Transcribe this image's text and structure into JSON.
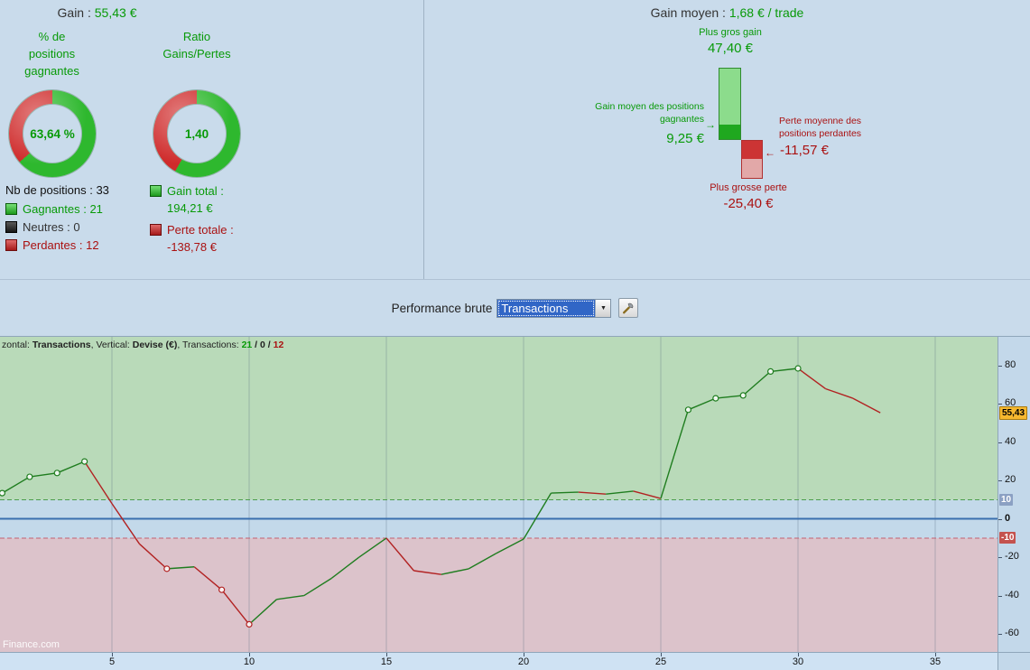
{
  "header": {
    "gain_label": "Gain :",
    "gain_value": "55,43 €",
    "avg_label": "Gain moyen :",
    "avg_value": "1,68 € / trade"
  },
  "donuts": {
    "winrate": {
      "label": "% de\npositions\ngagnantes",
      "value": "63,64 %",
      "green_pct": 63.64
    },
    "ratio": {
      "label": "Ratio\nGains/Pertes",
      "value": "1,40",
      "green_pct": 58.33
    }
  },
  "legend": {
    "total": "Nb de positions : 33",
    "items": [
      {
        "label": "Gagnantes : 21",
        "type": "win"
      },
      {
        "label": "Neutres : 0",
        "type": "neutral"
      },
      {
        "label": "Perdantes : 12",
        "type": "loss"
      }
    ]
  },
  "totals": {
    "gain": {
      "label": "Gain total :",
      "value": "194,21 €"
    },
    "loss": {
      "label": "Perte totale :",
      "value": "-138,78 €"
    }
  },
  "waterfall": {
    "max_gain_label": "Plus gros gain",
    "max_gain_value": "47,40 €",
    "max_gain": 47.4,
    "avg_gain_label": "Gain moyen des positions\ngagnantes",
    "avg_gain_value": "9,25 €",
    "avg_gain": 9.25,
    "avg_loss_label": "Perte moyenne des\npositions perdantes",
    "avg_loss_value": "-11,57 €",
    "avg_loss": 11.57,
    "max_loss_label": "Plus grosse perte",
    "max_loss_value": "-25,40 €",
    "max_loss": 25.4,
    "arrow_right": "→",
    "arrow_left": "←"
  },
  "toolbar": {
    "label": "Performance brute",
    "select_value": "Transactions",
    "dropdown_icon": "▼"
  },
  "chart_data": {
    "type": "line",
    "title": "Performance brute",
    "info": {
      "prefix": "zontal: ",
      "h_value": "Transactions",
      "mid1": ", Vertical: ",
      "v_value": "Devise (€)",
      "mid2": ", Transactions: ",
      "wins": "21",
      "sep1": " / ",
      "neutral": "0",
      "sep2": " / ",
      "losses": "12"
    },
    "watermark": "Finance.com",
    "xlabel": "Transactions",
    "ylabel": "Devise (€)",
    "x": [
      1,
      2,
      3,
      4,
      5,
      6,
      7,
      8,
      9,
      10,
      11,
      12,
      13,
      14,
      15,
      16,
      17,
      18,
      19,
      20,
      21,
      22,
      23,
      24,
      25,
      26,
      27,
      28,
      29,
      30,
      31,
      32,
      33
    ],
    "values": [
      13.5,
      22,
      24,
      30,
      8,
      -13,
      -26,
      -25,
      -37,
      -55,
      -42,
      -40,
      -31,
      -20,
      -10,
      -27,
      -29,
      -26,
      -18,
      -10.5,
      13.5,
      14,
      13,
      14.5,
      10.7,
      57,
      63,
      64.5,
      77,
      78.6,
      68,
      63,
      55.43
    ],
    "marker_points": [
      1,
      2,
      3,
      4,
      7,
      9,
      10,
      26,
      27,
      28,
      29,
      30
    ],
    "x_ticks": [
      5,
      10,
      15,
      20,
      25,
      30,
      35
    ],
    "y_ticks": [
      80,
      60,
      40,
      20,
      0,
      -20,
      -40,
      -60
    ],
    "upper_threshold": 10,
    "lower_threshold": -10,
    "xlim": [
      0.92,
      37.27
    ],
    "ylim": [
      -69.9,
      95.1
    ],
    "final_value": 55.43,
    "final_badge": "55,43",
    "upper_badge": "10",
    "lower_badge": "-10",
    "counts": {
      "wins": 21,
      "neutral": 0,
      "losses": 12
    },
    "up_color": "#1f7d1f",
    "down_color": "#b22222",
    "grid": true,
    "legend_position": "none"
  }
}
